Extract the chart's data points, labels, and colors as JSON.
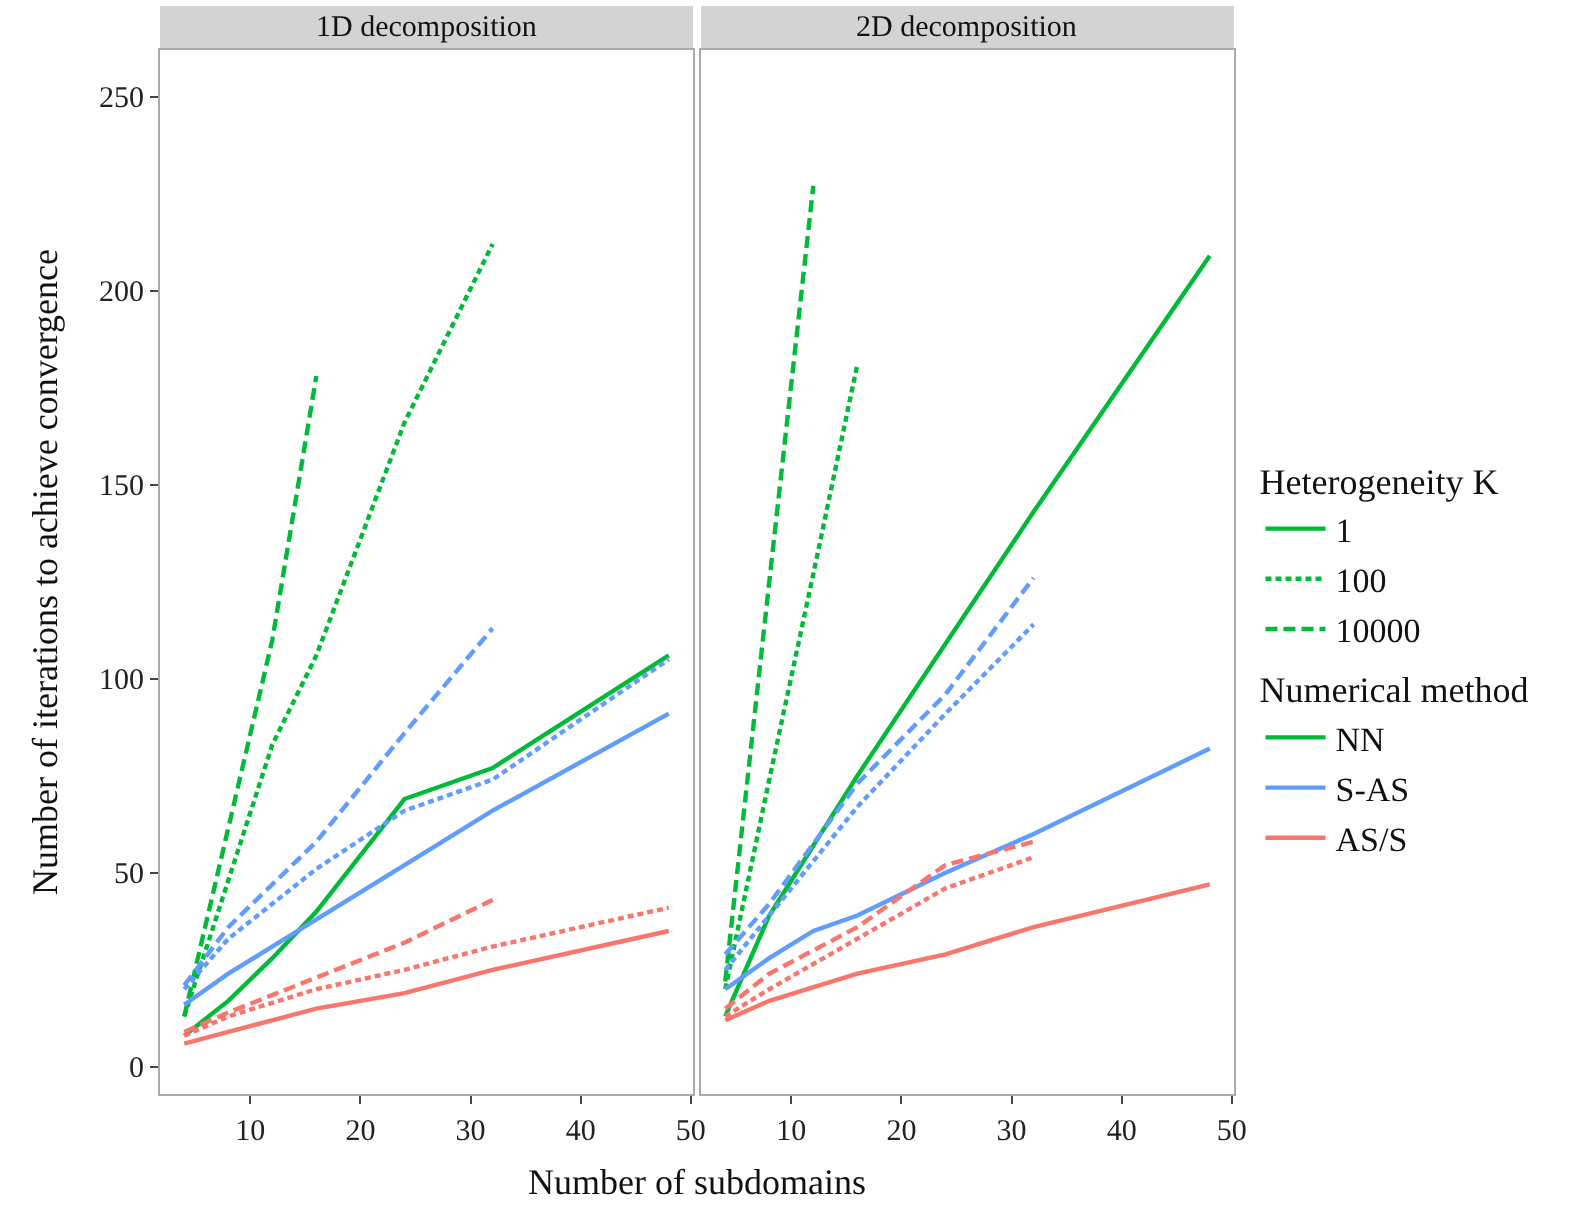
{
  "chart_data": [
    {
      "type": "line",
      "title": "1D decomposition",
      "xlabel": "Number of subdomains",
      "ylabel": "Number of iterations to achieve convergence",
      "legend_title": "Heterogeneity K",
      "legend": "right",
      "grid": false,
      "xlim": [
        1.8,
        50.2
      ],
      "ylim": [
        -7,
        262
      ],
      "xticks": [
        10,
        20,
        30,
        40,
        50
      ],
      "yticks": [
        0,
        50,
        100,
        150,
        200,
        250
      ],
      "series": [
        {
          "name": "1",
          "color": "#00ba38",
          "line_style": "solid",
          "x": [
            4,
            8,
            12,
            16,
            24,
            32,
            48
          ],
          "values": [
            8,
            17,
            28,
            40,
            69,
            77,
            106
          ]
        },
        {
          "name": "100",
          "color": "#00ba38",
          "line_style": "dotted",
          "x": [
            4,
            12,
            16,
            24,
            32
          ],
          "values": [
            13,
            83,
            106,
            166,
            212
          ]
        },
        {
          "name": "10000",
          "color": "#00ba38",
          "line_style": "dashed",
          "x": [
            4,
            12,
            16
          ],
          "values": [
            13,
            110,
            178
          ]
        },
        {
          "color": "#619cff",
          "line_style": "solid",
          "x": [
            4,
            8,
            16,
            24,
            32,
            48
          ],
          "values": [
            16,
            24,
            38,
            52,
            66,
            91
          ]
        },
        {
          "color": "#619cff",
          "line_style": "dotted",
          "x": [
            4,
            8,
            16,
            24,
            32,
            48
          ],
          "values": [
            20,
            33,
            51,
            66,
            74,
            105
          ]
        },
        {
          "color": "#619cff",
          "line_style": "dashed",
          "x": [
            4,
            8,
            16,
            24,
            32
          ],
          "values": [
            21,
            36,
            58,
            86,
            113
          ]
        },
        {
          "color": "#f8766d",
          "line_style": "solid",
          "x": [
            4,
            8,
            16,
            24,
            32,
            48
          ],
          "values": [
            6,
            9,
            15,
            19,
            25,
            35
          ]
        },
        {
          "color": "#f8766d",
          "line_style": "dotted",
          "x": [
            4,
            8,
            16,
            24,
            32,
            48
          ],
          "values": [
            8,
            13,
            20,
            25,
            31,
            41
          ]
        },
        {
          "color": "#f8766d",
          "line_style": "dashed",
          "x": [
            4,
            8,
            16,
            24,
            32
          ],
          "values": [
            9,
            14,
            23,
            32,
            43
          ]
        }
      ]
    },
    {
      "type": "line",
      "title": "2D decomposition",
      "legend_title": "Numerical method",
      "legend": "right",
      "grid": false,
      "tick_labels": "x",
      "xlim": [
        1.8,
        50.2
      ],
      "ylim": [
        -7,
        262
      ],
      "xticks": [
        10,
        20,
        30,
        40,
        50
      ],
      "yticks": [
        0,
        50,
        100,
        150,
        200,
        250
      ],
      "series": [
        {
          "name": "NN",
          "color": "#00ba38",
          "line_style": "solid",
          "x": [
            4,
            8,
            16,
            24,
            32,
            48
          ],
          "values": [
            13,
            39,
            75,
            109,
            143,
            209
          ]
        },
        {
          "color": "#00ba38",
          "line_style": "dotted",
          "x": [
            4,
            8,
            12,
            16
          ],
          "values": [
            20,
            74,
            127,
            181
          ]
        },
        {
          "color": "#00ba38",
          "line_style": "dashed",
          "x": [
            4,
            8,
            12
          ],
          "values": [
            22,
            125,
            227
          ]
        },
        {
          "name": "S-AS",
          "color": "#619cff",
          "line_style": "solid",
          "x": [
            4,
            8,
            12,
            16,
            24,
            32,
            48
          ],
          "values": [
            20,
            28,
            35,
            39,
            50,
            60,
            82
          ]
        },
        {
          "color": "#619cff",
          "line_style": "dotted",
          "x": [
            4,
            8,
            16,
            24,
            32
          ],
          "values": [
            25,
            39,
            67,
            91,
            114
          ]
        },
        {
          "color": "#619cff",
          "line_style": "dashed",
          "x": [
            4,
            8,
            16,
            24,
            32
          ],
          "values": [
            29,
            42,
            73,
            96,
            126
          ]
        },
        {
          "name": "AS/S",
          "color": "#f8766d",
          "line_style": "solid",
          "x": [
            4,
            8,
            16,
            24,
            32,
            48
          ],
          "values": [
            12,
            17,
            24,
            29,
            36,
            47
          ]
        },
        {
          "color": "#f8766d",
          "line_style": "dotted",
          "x": [
            4,
            8,
            16,
            24,
            32
          ],
          "values": [
            13,
            20,
            33,
            46,
            54
          ]
        },
        {
          "color": "#f8766d",
          "line_style": "dashed",
          "x": [
            4,
            8,
            16,
            24,
            32
          ],
          "values": [
            15,
            24,
            36,
            52,
            58
          ]
        }
      ]
    }
  ]
}
